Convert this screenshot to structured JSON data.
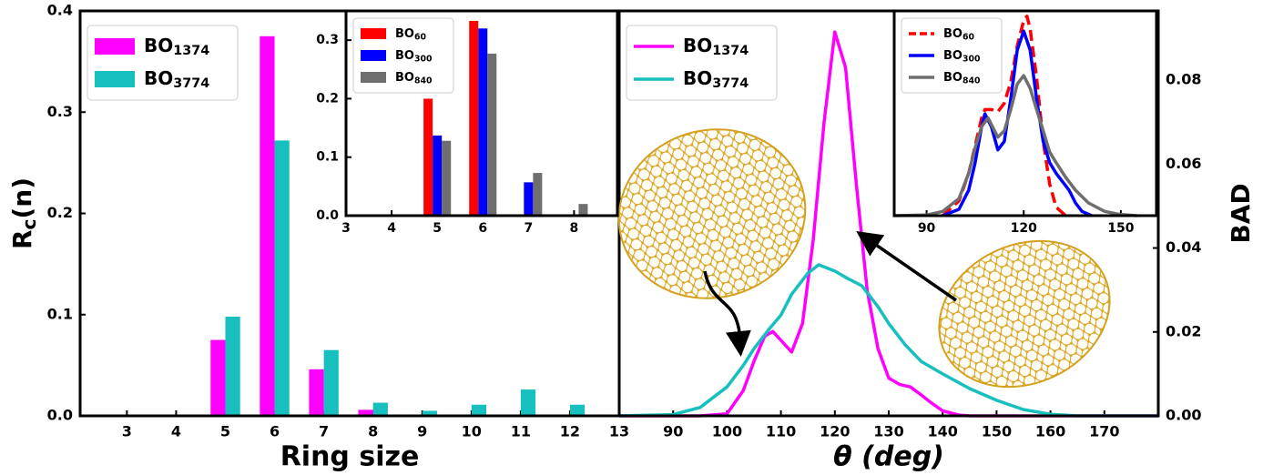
{
  "chart_data": [
    {
      "type": "bar",
      "xlabel": "Ring size",
      "ylabel": "Rc(n)",
      "x": [
        3,
        4,
        5,
        6,
        7,
        8,
        9,
        10,
        11,
        12
      ],
      "series": [
        {
          "name": "BO1374",
          "color": "#ff00ff",
          "values": [
            0,
            0,
            0.075,
            0.375,
            0.046,
            0.006,
            0,
            0,
            0,
            0
          ]
        },
        {
          "name": "BO3774",
          "color": "#17bfbf",
          "values": [
            0,
            0,
            0.098,
            0.272,
            0.065,
            0.013,
            0.005,
            0.011,
            0.026,
            0.011
          ]
        }
      ],
      "xlim": [
        2.05,
        13
      ],
      "xticks": [
        3,
        4,
        5,
        6,
        7,
        8,
        9,
        10,
        11,
        12,
        13
      ],
      "ylim": [
        0,
        0.4
      ],
      "yticks": [
        {
          "value": 0,
          "label": "0.0"
        },
        0.1,
        0.2,
        0.3,
        0.4
      ],
      "legend": "upper left"
    },
    {
      "type": "bar",
      "x": [
        4,
        5,
        6,
        7,
        8
      ],
      "series": [
        {
          "name": "BO60",
          "color": "#ff0000",
          "values": [
            0,
            0.2,
            0.333,
            0,
            0
          ]
        },
        {
          "name": "BO300",
          "color": "#0000ff",
          "values": [
            0,
            0.137,
            0.32,
            0.057,
            0
          ]
        },
        {
          "name": "BO840",
          "color": "#6e6e6e",
          "values": [
            0,
            0.128,
            0.277,
            0.073,
            0.02
          ]
        }
      ],
      "xlim": [
        3,
        8.95
      ],
      "xticks": [
        3,
        4,
        5,
        6,
        7,
        8
      ],
      "ylim": [
        0,
        0.35
      ],
      "yticks": [
        {
          "value": 0,
          "label": "0.0"
        },
        0.1,
        0.2,
        0.3
      ],
      "legend": "upper left"
    },
    {
      "type": "line",
      "xlabel": "θ (deg)",
      "ylabel": "BAD",
      "yaxis": "right",
      "series": [
        {
          "name": "BO1374",
          "color": "#ff00ff",
          "x": [
            80,
            95,
            100,
            103,
            105,
            107,
            108.5,
            110,
            112,
            114,
            116,
            118,
            120,
            122,
            124,
            126,
            128,
            130,
            132,
            134,
            136,
            138,
            140,
            143,
            145,
            180
          ],
          "values": [
            0,
            0,
            0.0005,
            0.006,
            0.013,
            0.019,
            0.0201,
            0.018,
            0.0152,
            0.022,
            0.042,
            0.07,
            0.0915,
            0.083,
            0.055,
            0.03,
            0.016,
            0.009,
            0.0075,
            0.0069,
            0.005,
            0.003,
            0.0012,
            0.0002,
            0,
            0
          ]
        },
        {
          "name": "BO3774",
          "color": "#17bfbf",
          "x": [
            80,
            90,
            95,
            100,
            103,
            105,
            108,
            110,
            112,
            115,
            117,
            120,
            122,
            125,
            128,
            130,
            133,
            136,
            140,
            145,
            150,
            155,
            160,
            165,
            180
          ],
          "values": [
            0,
            0.0003,
            0.002,
            0.0069,
            0.012,
            0.016,
            0.021,
            0.024,
            0.029,
            0.034,
            0.036,
            0.0345,
            0.033,
            0.031,
            0.026,
            0.022,
            0.017,
            0.013,
            0.01,
            0.0065,
            0.0037,
            0.0015,
            0.0004,
            0,
            0
          ]
        }
      ],
      "xlim": [
        80,
        180
      ],
      "xticks": [
        90,
        100,
        110,
        120,
        130,
        140,
        150,
        160,
        170
      ],
      "ylim": [
        0,
        0.0965
      ],
      "yticks": [
        {
          "value": 0,
          "label": "0.00"
        },
        {
          "value": 0.02,
          "label": "0.02"
        },
        {
          "value": 0.04,
          "label": "0.04"
        },
        {
          "value": 0.06,
          "label": "0.06"
        },
        {
          "value": 0.08,
          "label": "0.08"
        }
      ],
      "legend": "upper left"
    },
    {
      "type": "line",
      "series": [
        {
          "name": "BO60",
          "color": "#ff0000",
          "dashed": true,
          "x": [
            95,
            100,
            103,
            105,
            107,
            108,
            110,
            112,
            114,
            116,
            118,
            120,
            121,
            122,
            124,
            126,
            128,
            130,
            133
          ],
          "values": [
            0,
            0.007,
            0.02,
            0.033,
            0.046,
            0.05,
            0.05,
            0.049,
            0.053,
            0.063,
            0.08,
            0.092,
            0.094,
            0.088,
            0.065,
            0.035,
            0.015,
            0.004,
            0
          ]
        },
        {
          "name": "BO300",
          "color": "#0000ff",
          "x": [
            95,
            100,
            103,
            105,
            107,
            108,
            110,
            112,
            114,
            116,
            118,
            120,
            122,
            124,
            126,
            128,
            130,
            132,
            134,
            136,
            138,
            141
          ],
          "values": [
            0,
            0.003,
            0.012,
            0.025,
            0.042,
            0.048,
            0.042,
            0.031,
            0.035,
            0.055,
            0.078,
            0.087,
            0.078,
            0.055,
            0.035,
            0.025,
            0.02,
            0.016,
            0.012,
            0.006,
            0.002,
            0
          ]
        },
        {
          "name": "BO840",
          "color": "#6e6e6e",
          "x": [
            80,
            90,
            95,
            100,
            103,
            105,
            107,
            109,
            112,
            114,
            116,
            118,
            120,
            122,
            124,
            126,
            128,
            130,
            133,
            136,
            140,
            145,
            150,
            155
          ],
          "values": [
            0,
            0.0003,
            0.002,
            0.008,
            0.02,
            0.032,
            0.042,
            0.046,
            0.037,
            0.04,
            0.05,
            0.062,
            0.066,
            0.06,
            0.05,
            0.04,
            0.03,
            0.025,
            0.018,
            0.012,
            0.006,
            0.002,
            0.0005,
            0
          ]
        }
      ],
      "xlim": [
        80,
        161
      ],
      "xticks": [
        90,
        120,
        150
      ],
      "ylim": [
        0,
        0.0965
      ],
      "legend": "upper left"
    }
  ]
}
